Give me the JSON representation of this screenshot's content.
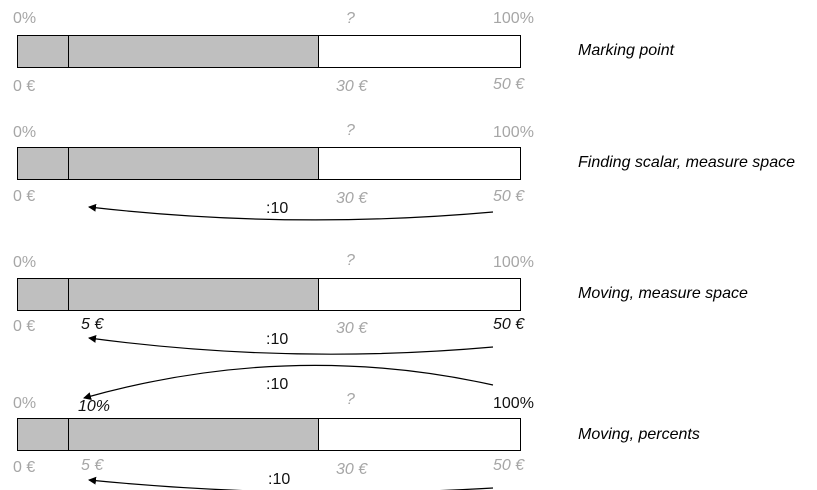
{
  "rows": [
    {
      "caption": "Marking point",
      "top": {
        "left": "0%",
        "mid": "?",
        "right": "100%",
        "mid_extra": ""
      },
      "bottom": {
        "left": "0 €",
        "five": "",
        "mid": "30 €",
        "right": "50 €"
      },
      "arrows": []
    },
    {
      "caption": "Finding scalar, measure space",
      "top": {
        "left": "0%",
        "mid": "?",
        "right": "100%",
        "mid_extra": ""
      },
      "bottom": {
        "left": "0 €",
        "five": "",
        "mid": "30 €",
        "right": "50 €"
      },
      "arrows": [
        ":10"
      ]
    },
    {
      "caption": "Moving, measure space",
      "top": {
        "left": "0%",
        "mid": "?",
        "right": "100%",
        "mid_extra": ""
      },
      "bottom": {
        "left": "0 €",
        "five": "5 €",
        "mid": "30 €",
        "right": "50 €"
      },
      "arrows": [
        ":10"
      ]
    },
    {
      "caption": "Moving, percents",
      "top": {
        "left": "0%",
        "mid": "?",
        "right": "100%",
        "mid_extra": "10%"
      },
      "bottom": {
        "left": "0 €",
        "five": "5 €",
        "mid": "30 €",
        "right": "50 €"
      },
      "arrows": [
        ":10",
        ":10"
      ]
    }
  ],
  "proportions": {
    "whole_eur": 50,
    "part_eur": 30,
    "unit_eur": 5
  },
  "colors": {
    "fill": "#bfbfbf",
    "muted_text": "#a6a6a6",
    "stroke": "#000000"
  }
}
